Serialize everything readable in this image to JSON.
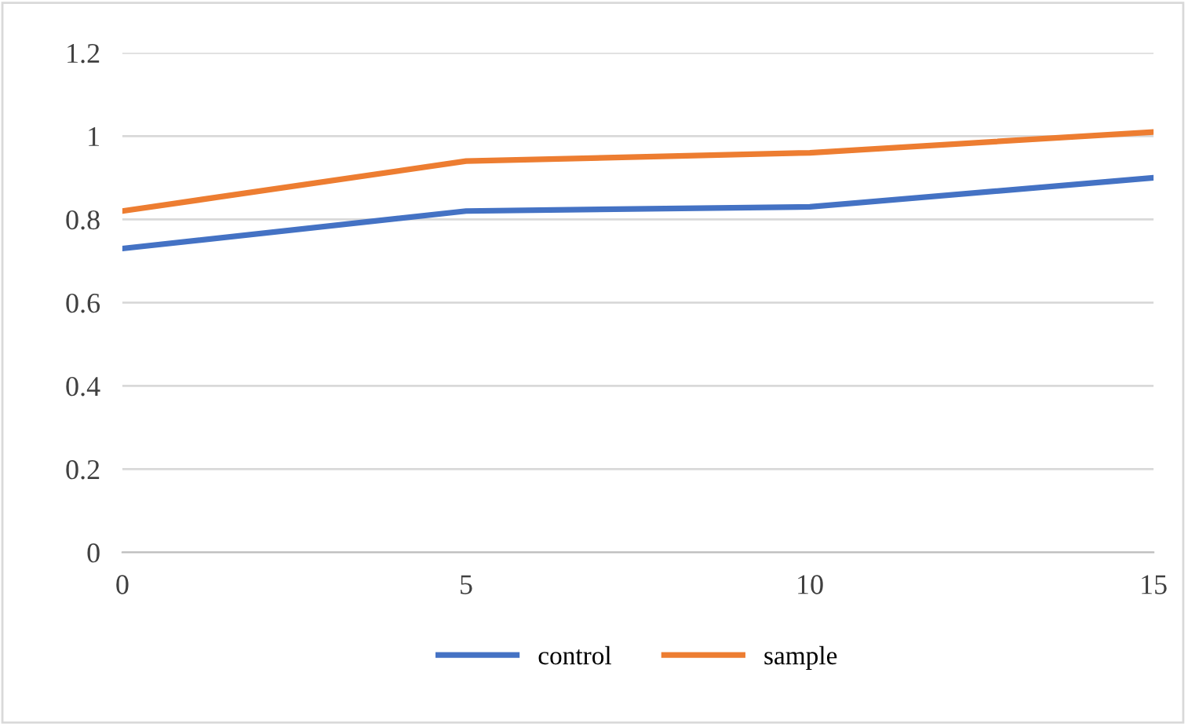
{
  "chart_data": {
    "type": "line",
    "x": [
      0,
      5,
      10,
      15
    ],
    "series": [
      {
        "name": "control",
        "color": "#4472c4",
        "values": [
          0.73,
          0.82,
          0.83,
          0.9
        ]
      },
      {
        "name": "sample",
        "color": "#ed7d31",
        "values": [
          0.82,
          0.94,
          0.96,
          1.01
        ]
      }
    ],
    "xlim": [
      0,
      15
    ],
    "xticks": [
      0,
      5,
      10,
      15
    ],
    "ylim": [
      0,
      1.2
    ],
    "yticks": [
      0,
      0.2,
      0.4,
      0.6,
      0.8,
      1,
      1.2
    ],
    "grid": "y",
    "legend": "bottom",
    "marker": "none",
    "line_style": "solid"
  }
}
